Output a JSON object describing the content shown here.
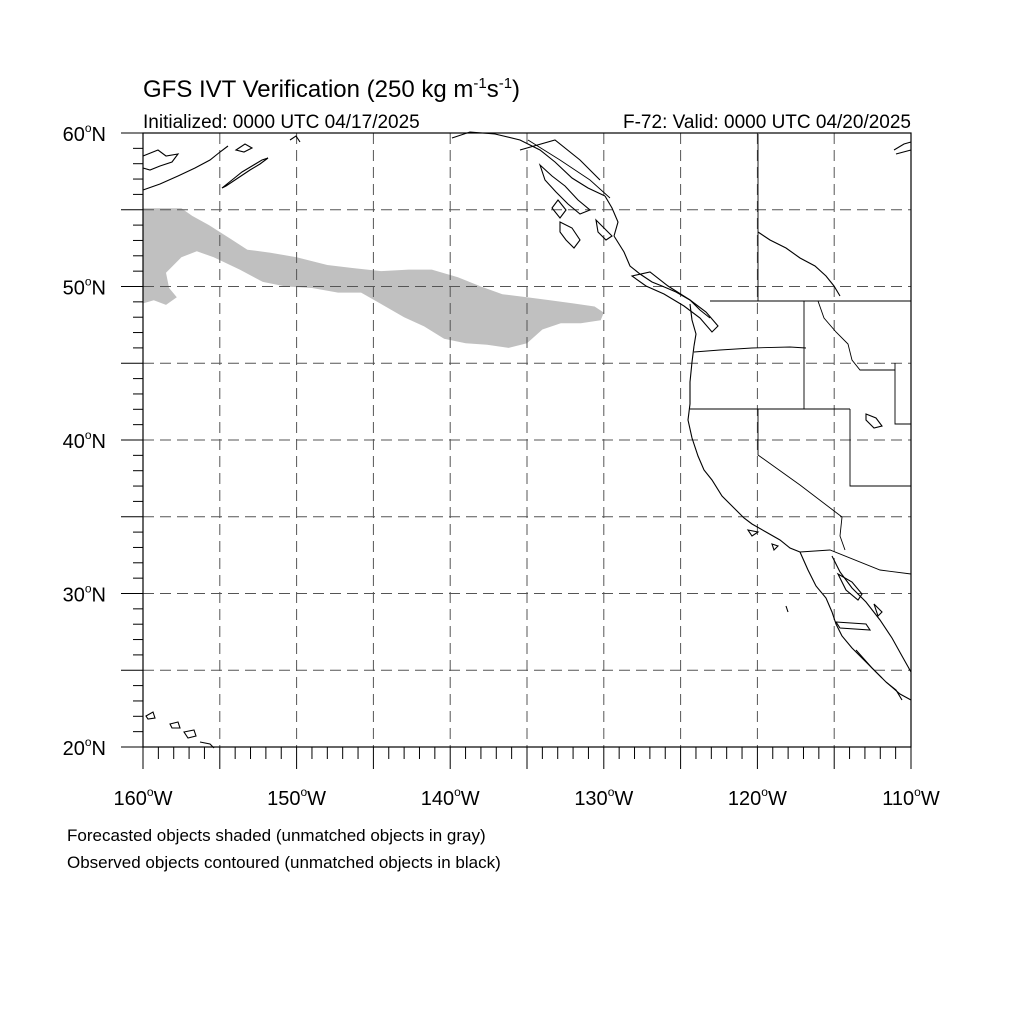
{
  "title": {
    "main": "GFS IVT Verification (250 kg m",
    "exp1": "-1",
    "mid": "s",
    "exp2": "-1",
    "end": ")"
  },
  "subtitle_left": "Initialized: 0000 UTC 04/17/2025",
  "subtitle_right": "F-72: Valid: 0000 UTC 04/20/2025",
  "map_extent": {
    "lon_min": -160,
    "lon_max": -110,
    "lat_min": 20,
    "lat_max": 60
  },
  "gridlines": {
    "lon": [
      -155,
      -150,
      -145,
      -140,
      -135,
      -130,
      -125,
      -120,
      -115
    ],
    "lat": [
      25,
      30,
      35,
      40,
      45,
      50,
      55
    ],
    "style": "dashed"
  },
  "lat_labels": [
    {
      "lat": 60,
      "text": "60°N"
    },
    {
      "lat": 50,
      "text": "50°N"
    },
    {
      "lat": 40,
      "text": "40°N"
    },
    {
      "lat": 30,
      "text": "30°N"
    },
    {
      "lat": 20,
      "text": "20°N"
    }
  ],
  "lon_labels": [
    {
      "lon": -160,
      "text": "160°W"
    },
    {
      "lon": -150,
      "text": "150°W"
    },
    {
      "lon": -140,
      "text": "140°W"
    },
    {
      "lon": -130,
      "text": "130°W"
    },
    {
      "lon": -120,
      "text": "120°W"
    },
    {
      "lon": -110,
      "text": "110°W"
    }
  ],
  "forecast_object": {
    "status": "unmatched",
    "color": "#c0c0c0",
    "outline": [
      [
        -160,
        55.1
      ],
      [
        -157.5,
        55.1
      ],
      [
        -156.8,
        54.6
      ],
      [
        -155.7,
        54.0
      ],
      [
        -154.3,
        53.1
      ],
      [
        -153.2,
        52.4
      ],
      [
        -151.7,
        52.2
      ],
      [
        -150.0,
        51.9
      ],
      [
        -148.0,
        51.4
      ],
      [
        -146.3,
        51.2
      ],
      [
        -144.5,
        51.0
      ],
      [
        -142.7,
        51.1
      ],
      [
        -141.2,
        51.1
      ],
      [
        -139.5,
        50.6
      ],
      [
        -138.0,
        50.0
      ],
      [
        -136.6,
        49.5
      ],
      [
        -135.0,
        49.3
      ],
      [
        -133.5,
        49.1
      ],
      [
        -132.0,
        48.9
      ],
      [
        -130.6,
        48.7
      ],
      [
        -130.0,
        48.3
      ],
      [
        -130.2,
        47.8
      ],
      [
        -131.5,
        47.6
      ],
      [
        -132.8,
        47.6
      ],
      [
        -134.0,
        47.2
      ],
      [
        -135.0,
        46.3
      ],
      [
        -136.2,
        46.0
      ],
      [
        -137.6,
        46.2
      ],
      [
        -139.0,
        46.3
      ],
      [
        -140.4,
        46.6
      ],
      [
        -141.7,
        47.4
      ],
      [
        -143.0,
        48.0
      ],
      [
        -144.4,
        48.8
      ],
      [
        -145.8,
        49.6
      ],
      [
        -147.3,
        49.6
      ],
      [
        -149.0,
        49.9
      ],
      [
        -150.7,
        50.0
      ],
      [
        -152.2,
        50.3
      ],
      [
        -153.7,
        51.1
      ],
      [
        -155.4,
        51.9
      ],
      [
        -156.5,
        52.3
      ],
      [
        -157.5,
        51.9
      ],
      [
        -158.5,
        50.9
      ],
      [
        -158.3,
        49.9
      ],
      [
        -157.8,
        49.3
      ],
      [
        -158.5,
        48.8
      ],
      [
        -159.3,
        49.1
      ],
      [
        -160,
        48.9
      ]
    ]
  },
  "footnotes": [
    "Forecasted objects shaded (unmatched objects in gray)",
    "Observed objects contoured (unmatched objects in black)"
  ]
}
